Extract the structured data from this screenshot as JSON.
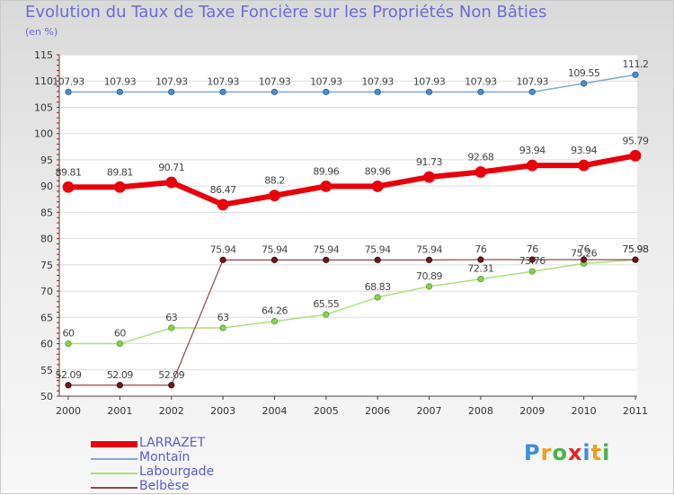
{
  "chart_data": {
    "type": "line",
    "title": "Evolution du Taux de Taxe Foncière sur les Propriétés Non Bâties",
    "subtitle": "(en %)",
    "xlabel": "",
    "ylabel": "",
    "x": [
      "2000",
      "2001",
      "2002",
      "2003",
      "2004",
      "2005",
      "2006",
      "2007",
      "2008",
      "2009",
      "2010",
      "2011"
    ],
    "ylim": [
      50,
      115
    ],
    "yticks": [
      "50",
      "55",
      "60",
      "65",
      "70",
      "75",
      "80",
      "85",
      "90",
      "95",
      "100",
      "105",
      "110",
      "115"
    ],
    "grid": "horizontal",
    "legend_position": "bottom-left",
    "series": [
      {
        "name": "LARRAZET",
        "color": "#e8000b",
        "values": [
          89.81,
          89.81,
          90.71,
          86.47,
          88.2,
          89.96,
          89.96,
          91.73,
          92.68,
          93.94,
          93.94,
          95.79
        ],
        "labels": [
          "89.81",
          "89.81",
          "90.71",
          "86.47",
          "88.2",
          "89.96",
          "89.96",
          "91.73",
          "92.68",
          "93.94",
          "93.94",
          "95.79"
        ]
      },
      {
        "name": "Montaïn",
        "color": "#7fa8d8",
        "values": [
          107.93,
          107.93,
          107.93,
          107.93,
          107.93,
          107.93,
          107.93,
          107.93,
          107.93,
          107.93,
          109.55,
          111.2
        ],
        "labels": [
          "107.93",
          "107.93",
          "107.93",
          "107.93",
          "107.93",
          "107.93",
          "107.93",
          "107.93",
          "107.93",
          "107.93",
          "109.55",
          "111.2"
        ]
      },
      {
        "name": "Labourgade",
        "color": "#a8e07c",
        "values": [
          60,
          60,
          63,
          63,
          64.26,
          65.55,
          68.83,
          70.89,
          72.31,
          73.76,
          75.26,
          75.98
        ],
        "labels": [
          "60",
          "60",
          "63",
          "63",
          "64.26",
          "65.55",
          "68.83",
          "70.89",
          "72.31",
          "73.76",
          "75.26",
          "75.98"
        ]
      },
      {
        "name": "Belbèse",
        "color": "#8b4a4a",
        "values": [
          52.09,
          52.09,
          52.09,
          75.94,
          75.94,
          75.94,
          75.94,
          75.94,
          76,
          76,
          76,
          75.98
        ],
        "labels": [
          "52.09",
          "52.09",
          "52.09",
          "75.94",
          "75.94",
          "75.94",
          "75.94",
          "75.94",
          "76",
          "76",
          "76",
          "75.98"
        ]
      }
    ]
  },
  "logo": {
    "letters": [
      "P",
      "r",
      "o",
      "x",
      "i",
      "t",
      "i"
    ],
    "colors": [
      "#3c8de0",
      "#f39c1e",
      "#49b24a",
      "#e8232b",
      "#3c8de0",
      "#f39c1e",
      "#49b24a"
    ]
  }
}
